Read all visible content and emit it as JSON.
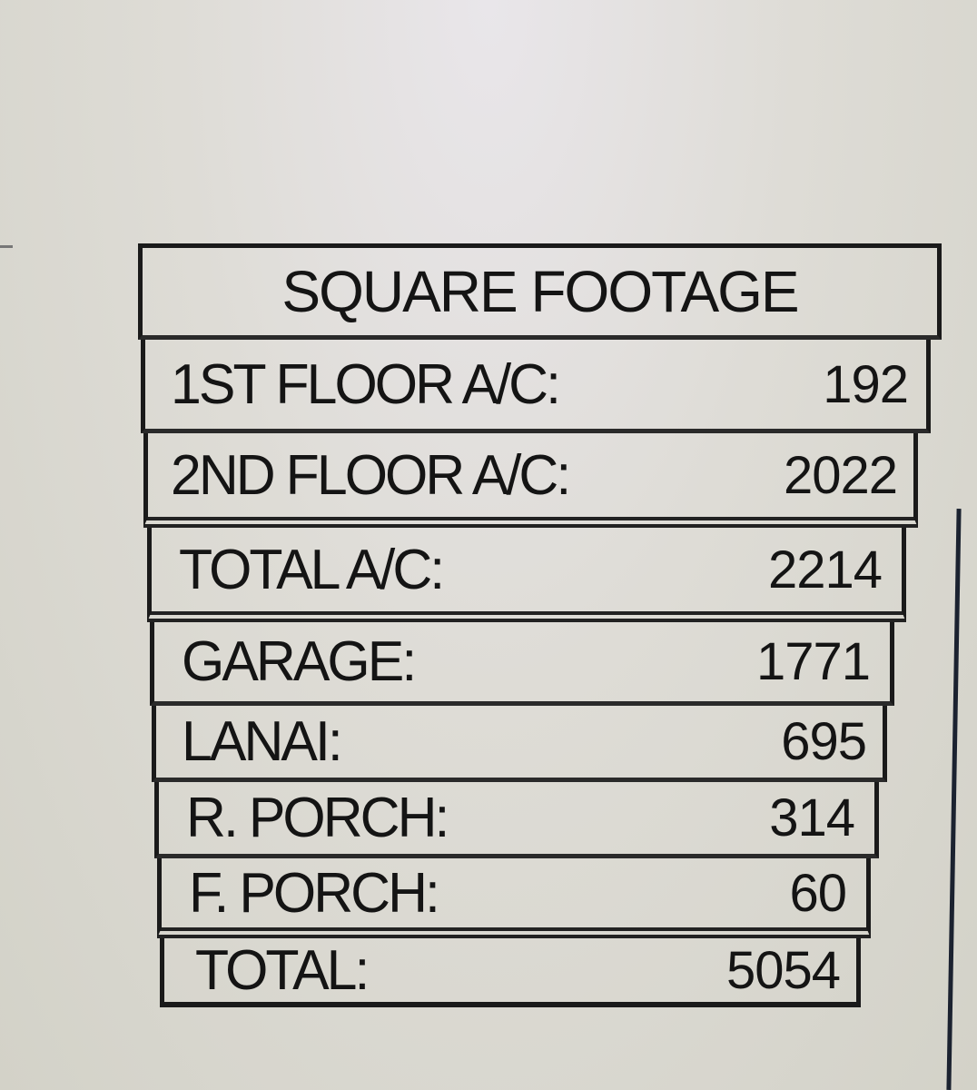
{
  "table": {
    "title": "SQUARE FOOTAGE",
    "rows": [
      {
        "label": "1ST FLOOR A/C:",
        "value": "192"
      },
      {
        "label": "2ND FLOOR A/C:",
        "value": "2022"
      },
      {
        "label": "TOTAL A/C:",
        "value": "2214"
      },
      {
        "label": "GARAGE:",
        "value": "1771"
      },
      {
        "label": "LANAI:",
        "value": "695"
      },
      {
        "label": "R. PORCH:",
        "value": "314"
      },
      {
        "label": "F. PORCH:",
        "value": "60"
      },
      {
        "label": "TOTAL:",
        "value": "5054"
      }
    ]
  }
}
